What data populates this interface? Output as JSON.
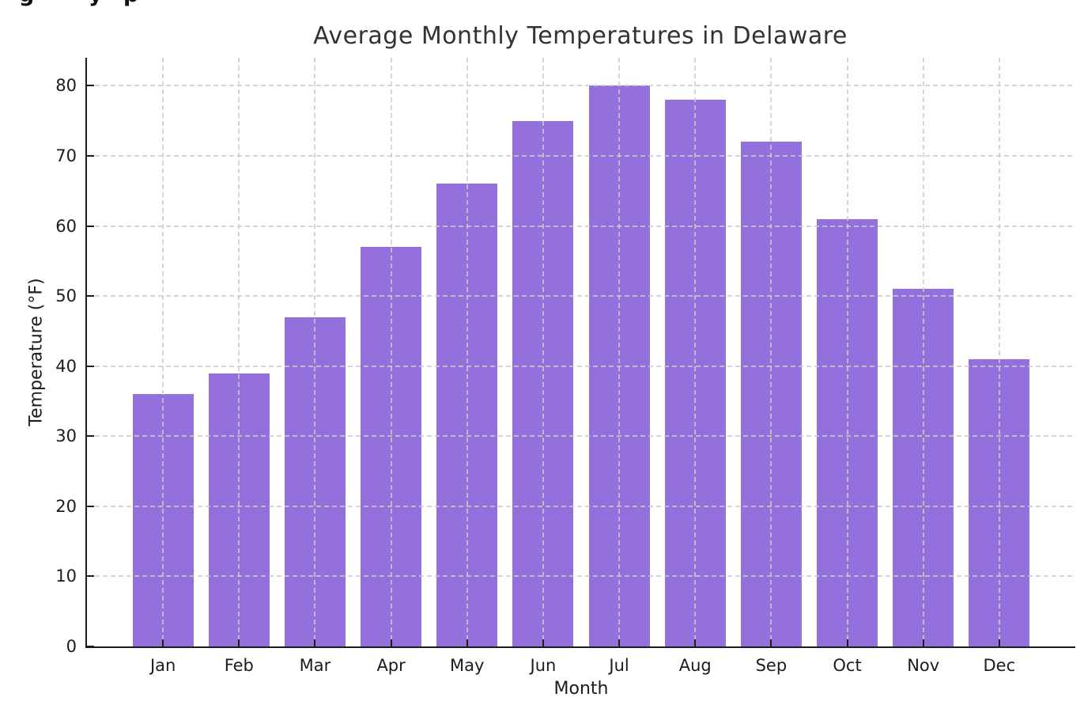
{
  "page": {
    "background": "#ffffff"
  },
  "artifact": {
    "glyphs": [
      "g",
      "y",
      "p"
    ]
  },
  "chart_data": {
    "type": "bar",
    "title": "Average Monthly Temperatures in Delaware",
    "xlabel": "Month",
    "ylabel": "Temperature (°F)",
    "categories": [
      "Jan",
      "Feb",
      "Mar",
      "Apr",
      "May",
      "Jun",
      "Jul",
      "Aug",
      "Sep",
      "Oct",
      "Nov",
      "Dec"
    ],
    "values": [
      36,
      39,
      47,
      57,
      66,
      75,
      80,
      78,
      72,
      61,
      51,
      41
    ],
    "yticks": [
      0,
      10,
      20,
      30,
      40,
      50,
      60,
      70,
      80
    ],
    "ylim": [
      0,
      84
    ],
    "xlim": [
      -1,
      12
    ],
    "bar_width_fraction": 0.8,
    "bar_color": "#9370DB",
    "grid": {
      "style": "dashed",
      "color": "#cccccc",
      "above_bars": true
    },
    "axis_color": "#1c1c1c",
    "title_color": "#333333",
    "legend": "none"
  }
}
